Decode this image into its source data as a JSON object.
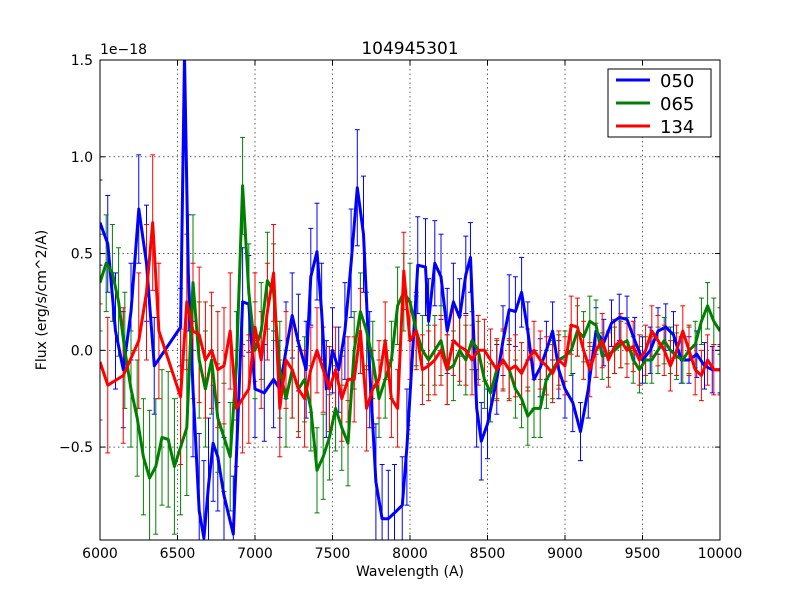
{
  "chart_data": {
    "type": "line",
    "title": "104945301",
    "xlabel": "Wavelength (A)",
    "ylabel": "Flux (erg/s/cm^2/A)",
    "offset_label": "1e−18",
    "xlim": [
      6000,
      10000
    ],
    "ylim": [
      -0.98,
      1.5
    ],
    "grid": true,
    "legend_position": "top-right",
    "xticks": [
      6000,
      6500,
      7000,
      7500,
      8000,
      8500,
      9000,
      9500,
      10000
    ],
    "xtick_labels": [
      "6000",
      "6500",
      "7000",
      "7500",
      "8000",
      "8500",
      "9000",
      "9500",
      "10000"
    ],
    "yticks": [
      -0.5,
      0.0,
      0.5,
      1.0,
      1.5
    ],
    "ytick_labels": [
      "−0.5",
      "0.0",
      "0.5",
      "1.0",
      "1.5"
    ],
    "series": [
      {
        "name": "050",
        "color": "#0000ff",
        "x": [
          6000,
          6050,
          6100,
          6150,
          6200,
          6250,
          6300,
          6350,
          6520,
          6545,
          6570,
          6600,
          6640,
          6670,
          6700,
          6730,
          6760,
          6800,
          6860,
          6920,
          6960,
          7000,
          7060,
          7120,
          7160,
          7200,
          7240,
          7280,
          7330,
          7360,
          7400,
          7430,
          7460,
          7500,
          7540,
          7580,
          7620,
          7660,
          7700,
          7740,
          7780,
          7820,
          7860,
          7900,
          7950,
          7980,
          8050,
          8100,
          8120,
          8160,
          8200,
          8240,
          8280,
          8320,
          8360,
          8390,
          8430,
          8460,
          8500,
          8560,
          8600,
          8640,
          8680,
          8720,
          8760,
          8800,
          8840,
          8880,
          8920,
          8960,
          9000,
          9050,
          9100,
          9150,
          9200,
          9250,
          9300,
          9350,
          9400,
          9450,
          9500,
          9550,
          9600,
          9650,
          9700,
          9750,
          9800,
          9850,
          9900,
          9950,
          10000
        ],
        "values": [
          0.66,
          0.55,
          0.1,
          -0.1,
          0.2,
          0.73,
          0.45,
          -0.08,
          0.12,
          1.52,
          0.4,
          -0.2,
          -0.83,
          -0.97,
          -0.7,
          -0.48,
          -0.55,
          -0.75,
          -0.95,
          0.25,
          0.24,
          -0.2,
          -0.22,
          -0.15,
          -0.2,
          0.0,
          0.18,
          0.04,
          -0.1,
          0.38,
          0.51,
          0.2,
          -0.2,
          0.0,
          -0.1,
          0.1,
          0.45,
          0.84,
          0.6,
          -0.1,
          -0.68,
          -0.87,
          -0.87,
          -0.84,
          -0.8,
          -0.5,
          0.44,
          0.43,
          0.15,
          0.45,
          0.38,
          0.1,
          0.25,
          0.17,
          0.39,
          0.48,
          -0.3,
          -0.47,
          -0.38,
          -0.15,
          0.05,
          0.21,
          0.2,
          0.3,
          0.1,
          -0.15,
          -0.09,
          0.0,
          0.1,
          -0.1,
          -0.2,
          -0.27,
          -0.42,
          -0.2,
          0.1,
          0.04,
          0.14,
          0.17,
          0.16,
          0.05,
          -0.05,
          0.0,
          0.1,
          0.12,
          0.08,
          -0.05,
          -0.05,
          -0.02,
          -0.08,
          -0.1,
          -0.1
        ],
        "errors": [
          0.22,
          0.25,
          0.3,
          0.3,
          0.25,
          0.28,
          0.3,
          0.25,
          0.2,
          0.35,
          0.3,
          0.35,
          0.4,
          0.4,
          0.35,
          0.3,
          0.28,
          0.3,
          0.3,
          0.28,
          0.25,
          0.25,
          0.25,
          0.25,
          0.25,
          0.25,
          0.22,
          0.25,
          0.25,
          0.25,
          0.25,
          0.25,
          0.25,
          0.22,
          0.22,
          0.25,
          0.28,
          0.3,
          0.3,
          0.3,
          0.3,
          0.28,
          0.25,
          0.25,
          0.25,
          0.3,
          0.25,
          0.25,
          0.22,
          0.22,
          0.22,
          0.22,
          0.2,
          0.2,
          0.2,
          0.18,
          0.2,
          0.2,
          0.18,
          0.18,
          0.18,
          0.18,
          0.18,
          0.18,
          0.15,
          0.15,
          0.15,
          0.15,
          0.15,
          0.15,
          0.15,
          0.15,
          0.15,
          0.15,
          0.12,
          0.12,
          0.12,
          0.12,
          0.12,
          0.12,
          0.12,
          0.12,
          0.12,
          0.12,
          0.12,
          0.12,
          0.12,
          0.12,
          0.12,
          0.12,
          0.12
        ]
      },
      {
        "name": "065",
        "color": "#008000",
        "x": [
          6000,
          6040,
          6080,
          6120,
          6160,
          6200,
          6240,
          6280,
          6320,
          6360,
          6400,
          6440,
          6480,
          6520,
          6560,
          6600,
          6640,
          6680,
          6720,
          6760,
          6800,
          6840,
          6880,
          6920,
          6960,
          7000,
          7040,
          7080,
          7120,
          7160,
          7200,
          7240,
          7280,
          7320,
          7360,
          7400,
          7440,
          7480,
          7520,
          7560,
          7600,
          7640,
          7680,
          7720,
          7760,
          7800,
          7840,
          7880,
          7920,
          7960,
          8000,
          8040,
          8080,
          8120,
          8160,
          8200,
          8240,
          8280,
          8320,
          8360,
          8400,
          8440,
          8480,
          8520,
          8560,
          8600,
          8640,
          8680,
          8720,
          8760,
          8800,
          8840,
          8880,
          8920,
          8960,
          9000,
          9040,
          9080,
          9120,
          9160,
          9200,
          9240,
          9280,
          9320,
          9360,
          9400,
          9440,
          9480,
          9520,
          9560,
          9600,
          9640,
          9680,
          9720,
          9760,
          9800,
          9840,
          9880,
          9920,
          9960,
          10000
        ],
        "values": [
          0.35,
          0.45,
          0.4,
          0.25,
          0.0,
          -0.2,
          -0.35,
          -0.55,
          -0.66,
          -0.6,
          -0.45,
          -0.46,
          -0.6,
          -0.5,
          -0.4,
          0.35,
          -0.05,
          -0.2,
          -0.05,
          -0.35,
          -0.45,
          -0.55,
          -0.08,
          0.85,
          0.3,
          0.0,
          0.1,
          0.36,
          0.3,
          -0.1,
          -0.25,
          -0.1,
          -0.2,
          -0.15,
          -0.3,
          -0.62,
          -0.55,
          -0.45,
          -0.3,
          -0.4,
          -0.48,
          0.0,
          0.2,
          0.1,
          -0.05,
          -0.25,
          -0.15,
          -0.05,
          0.23,
          0.3,
          0.25,
          0.1,
          0.0,
          -0.05,
          0.0,
          0.05,
          -0.1,
          -0.08,
          0.0,
          -0.05,
          0.05,
          0.0,
          -0.15,
          -0.22,
          -0.1,
          -0.05,
          -0.1,
          -0.2,
          -0.25,
          -0.34,
          -0.3,
          -0.3,
          -0.15,
          -0.1,
          -0.05,
          -0.03,
          0.0,
          0.1,
          0.07,
          0.15,
          0.13,
          -0.03,
          -0.02,
          0.0,
          0.03,
          0.05,
          -0.05,
          -0.1,
          -0.05,
          -0.05,
          0.0,
          0.05,
          0.0,
          -0.03,
          -0.05,
          0.0,
          0.03,
          0.15,
          0.23,
          0.15,
          0.1
        ],
        "errors": [
          0.25,
          0.25,
          0.25,
          0.28,
          0.3,
          0.3,
          0.3,
          0.3,
          0.35,
          0.35,
          0.35,
          0.35,
          0.35,
          0.35,
          0.35,
          0.35,
          0.3,
          0.3,
          0.28,
          0.28,
          0.28,
          0.28,
          0.28,
          0.25,
          0.25,
          0.25,
          0.25,
          0.25,
          0.25,
          0.25,
          0.25,
          0.25,
          0.22,
          0.22,
          0.22,
          0.22,
          0.22,
          0.22,
          0.22,
          0.22,
          0.22,
          0.2,
          0.2,
          0.2,
          0.2,
          0.2,
          0.2,
          0.2,
          0.2,
          0.2,
          0.2,
          0.18,
          0.18,
          0.18,
          0.18,
          0.18,
          0.18,
          0.18,
          0.18,
          0.18,
          0.15,
          0.15,
          0.15,
          0.15,
          0.15,
          0.15,
          0.15,
          0.15,
          0.15,
          0.15,
          0.15,
          0.15,
          0.15,
          0.15,
          0.13,
          0.13,
          0.13,
          0.13,
          0.13,
          0.13,
          0.13,
          0.12,
          0.12,
          0.12,
          0.12,
          0.12,
          0.12,
          0.12,
          0.12,
          0.12,
          0.12,
          0.12,
          0.12,
          0.12,
          0.12,
          0.12,
          0.12,
          0.12,
          0.12,
          0.12,
          0.12
        ]
      },
      {
        "name": "134",
        "color": "#ff0000",
        "x": [
          6000,
          6050,
          6150,
          6250,
          6300,
          6340,
          6380,
          6520,
          6560,
          6600,
          6640,
          6680,
          6720,
          6760,
          6800,
          6840,
          6880,
          6920,
          6960,
          7000,
          7040,
          7080,
          7120,
          7160,
          7200,
          7240,
          7280,
          7320,
          7360,
          7400,
          7440,
          7480,
          7520,
          7560,
          7600,
          7640,
          7680,
          7720,
          7760,
          7800,
          7840,
          7880,
          7920,
          7960,
          8000,
          8040,
          8080,
          8120,
          8160,
          8200,
          8240,
          8280,
          8320,
          8360,
          8400,
          8440,
          8480,
          8520,
          8560,
          8600,
          8640,
          8680,
          8720,
          8760,
          8800,
          8840,
          8880,
          8920,
          8960,
          9000,
          9040,
          9080,
          9120,
          9160,
          9200,
          9240,
          9280,
          9320,
          9360,
          9400,
          9440,
          9480,
          9520,
          9560,
          9600,
          9640,
          9680,
          9720,
          9760,
          9800,
          9840,
          9880,
          9920,
          9960,
          10000
        ],
        "values": [
          -0.06,
          -0.18,
          -0.13,
          0.05,
          0.3,
          0.66,
          0.1,
          -0.24,
          0.25,
          0.1,
          0.08,
          -0.05,
          0.0,
          -0.1,
          -0.08,
          0.1,
          -0.3,
          -0.25,
          -0.2,
          0.12,
          -0.05,
          0.2,
          0.4,
          -0.3,
          -0.05,
          -0.1,
          -0.2,
          -0.25,
          -0.1,
          0.0,
          -0.1,
          -0.2,
          -0.1,
          -0.25,
          -0.15,
          -0.15,
          0.1,
          -0.3,
          -0.2,
          -0.15,
          0.05,
          -0.25,
          -0.3,
          0.41,
          0.05,
          0.1,
          -0.1,
          -0.08,
          -0.05,
          0.0,
          -0.1,
          0.05,
          0.02,
          0.0,
          -0.05,
          0.0,
          0.0,
          -0.05,
          -0.1,
          -0.05,
          -0.1,
          -0.08,
          -0.12,
          -0.05,
          0.0,
          -0.05,
          -0.08,
          -0.12,
          -0.05,
          -0.08,
          0.13,
          0.12,
          0.0,
          -0.1,
          0.0,
          0.05,
          -0.05,
          0.02,
          0.05,
          0.0,
          0.02,
          -0.05,
          0.0,
          0.1,
          0.05,
          0.0,
          -0.08,
          0.0,
          0.1,
          0.0,
          -0.1,
          -0.13,
          -0.05,
          -0.1,
          -0.1
        ],
        "errors": [
          0.3,
          0.35,
          0.35,
          0.35,
          0.35,
          0.35,
          0.35,
          0.35,
          0.35,
          0.35,
          0.35,
          0.3,
          0.3,
          0.3,
          0.3,
          0.3,
          0.3,
          0.28,
          0.28,
          0.28,
          0.25,
          0.25,
          0.25,
          0.25,
          0.25,
          0.25,
          0.25,
          0.25,
          0.22,
          0.22,
          0.22,
          0.22,
          0.22,
          0.22,
          0.22,
          0.22,
          0.22,
          0.22,
          0.2,
          0.2,
          0.2,
          0.2,
          0.2,
          0.2,
          0.2,
          0.2,
          0.18,
          0.18,
          0.18,
          0.18,
          0.18,
          0.18,
          0.18,
          0.18,
          0.18,
          0.18,
          0.16,
          0.16,
          0.16,
          0.16,
          0.16,
          0.16,
          0.16,
          0.16,
          0.15,
          0.15,
          0.15,
          0.15,
          0.15,
          0.15,
          0.15,
          0.15,
          0.15,
          0.14,
          0.14,
          0.14,
          0.14,
          0.14,
          0.14,
          0.14,
          0.13,
          0.13,
          0.13,
          0.13,
          0.13,
          0.13,
          0.13,
          0.13,
          0.13,
          0.13,
          0.13,
          0.13,
          0.13,
          0.13,
          0.13
        ]
      }
    ]
  }
}
